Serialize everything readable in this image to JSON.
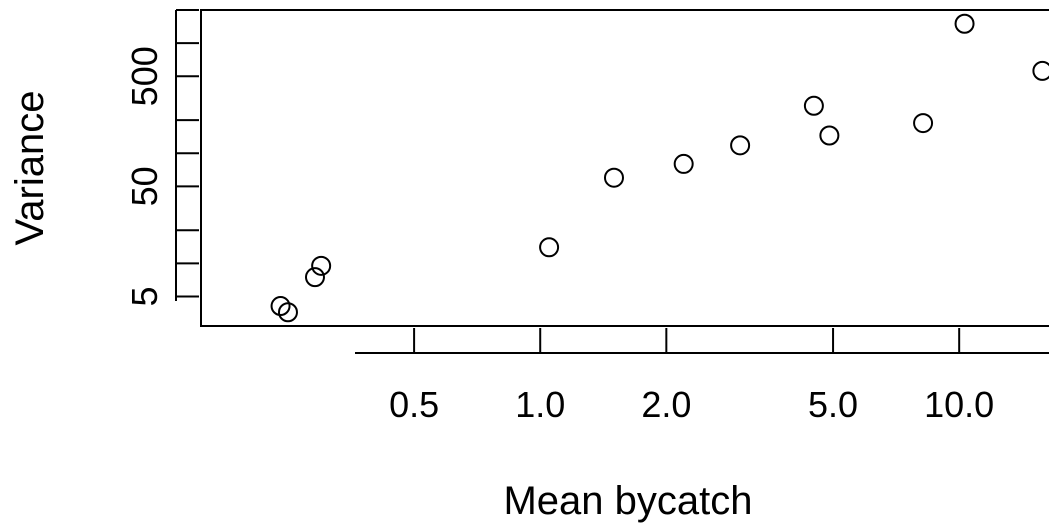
{
  "chart_data": {
    "type": "scatter",
    "title": "",
    "xlabel": "Mean bycatch",
    "ylabel": "Variance",
    "x_scale": "log",
    "y_scale": "log",
    "xlim": [
      0.155,
      17.5
    ],
    "ylim": [
      2.7,
      2000
    ],
    "grid": false,
    "legend": "none",
    "x_ticks": [
      {
        "value": 0.2,
        "label": ""
      },
      {
        "value": 0.5,
        "label": "0.5"
      },
      {
        "value": 1.0,
        "label": "1.0"
      },
      {
        "value": 2.0,
        "label": "2.0"
      },
      {
        "value": 5.0,
        "label": "5.0"
      },
      {
        "value": 10.0,
        "label": "10.0"
      }
    ],
    "y_ticks": [
      {
        "value": 5,
        "label": "5"
      },
      {
        "value": 10,
        "label": ""
      },
      {
        "value": 20,
        "label": ""
      },
      {
        "value": 50,
        "label": "50"
      },
      {
        "value": 100,
        "label": ""
      },
      {
        "value": 200,
        "label": ""
      },
      {
        "value": 500,
        "label": "500"
      },
      {
        "value": 1000,
        "label": ""
      },
      {
        "value": 2000,
        "label": ""
      }
    ],
    "points": [
      {
        "x": 0.24,
        "y": 4.1
      },
      {
        "x": 0.25,
        "y": 3.6
      },
      {
        "x": 0.29,
        "y": 7.5
      },
      {
        "x": 0.3,
        "y": 9.5
      },
      {
        "x": 1.05,
        "y": 14
      },
      {
        "x": 1.5,
        "y": 60
      },
      {
        "x": 2.2,
        "y": 80
      },
      {
        "x": 3.0,
        "y": 118
      },
      {
        "x": 4.5,
        "y": 270
      },
      {
        "x": 4.9,
        "y": 145
      },
      {
        "x": 8.2,
        "y": 188
      },
      {
        "x": 10.3,
        "y": 1500
      },
      {
        "x": 15.8,
        "y": 560
      }
    ]
  }
}
